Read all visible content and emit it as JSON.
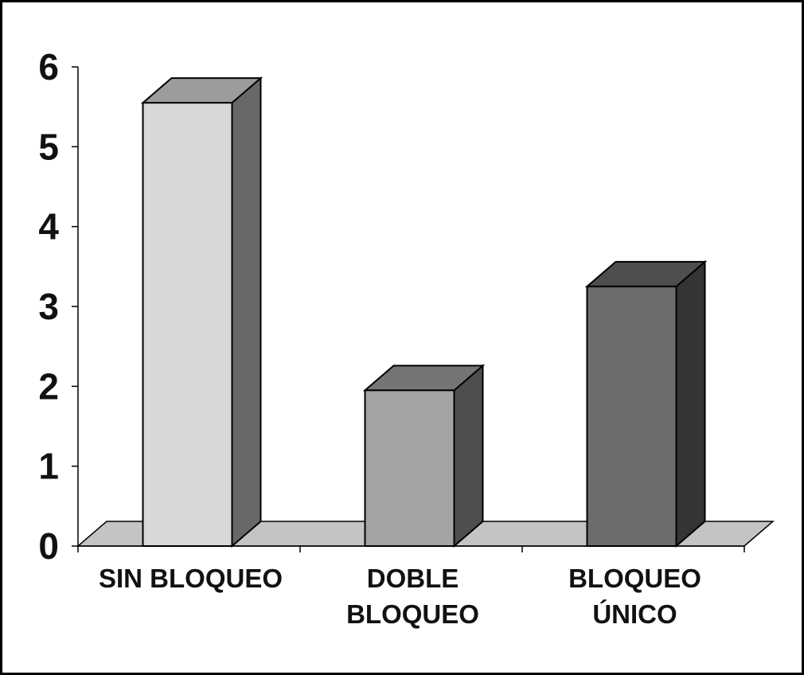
{
  "chart_data": {
    "type": "bar",
    "style": "3d",
    "title": "",
    "xlabel": "",
    "ylabel": "",
    "categories": [
      [
        "SIN BLOQUEO"
      ],
      [
        "DOBLE",
        "BLOQUEO"
      ],
      [
        "BLOQUEO",
        "ÚNICO"
      ]
    ],
    "values": [
      5.55,
      1.95,
      3.25
    ],
    "colors": [
      "#d8d8d8",
      "#a3a3a3",
      "#6c6c6c"
    ],
    "ylim": [
      0,
      6
    ],
    "yticks": [
      0,
      1,
      2,
      3,
      4,
      5,
      6
    ],
    "grid": false,
    "legend": "none"
  }
}
